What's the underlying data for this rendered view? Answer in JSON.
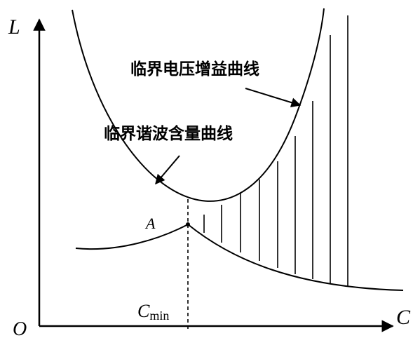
{
  "diagram": {
    "axes": {
      "y_label": "L",
      "x_label": "C",
      "origin_label": "O"
    },
    "curves": {
      "voltage_gain_curve_label": "临界电压增益曲线",
      "harmonic_curve_label": "临界谐波含量曲线"
    },
    "point_label": "A",
    "cmin_label_base": "C",
    "cmin_label_sub": "min",
    "colors": {
      "ink": "#000000",
      "background": "#ffffff"
    }
  }
}
